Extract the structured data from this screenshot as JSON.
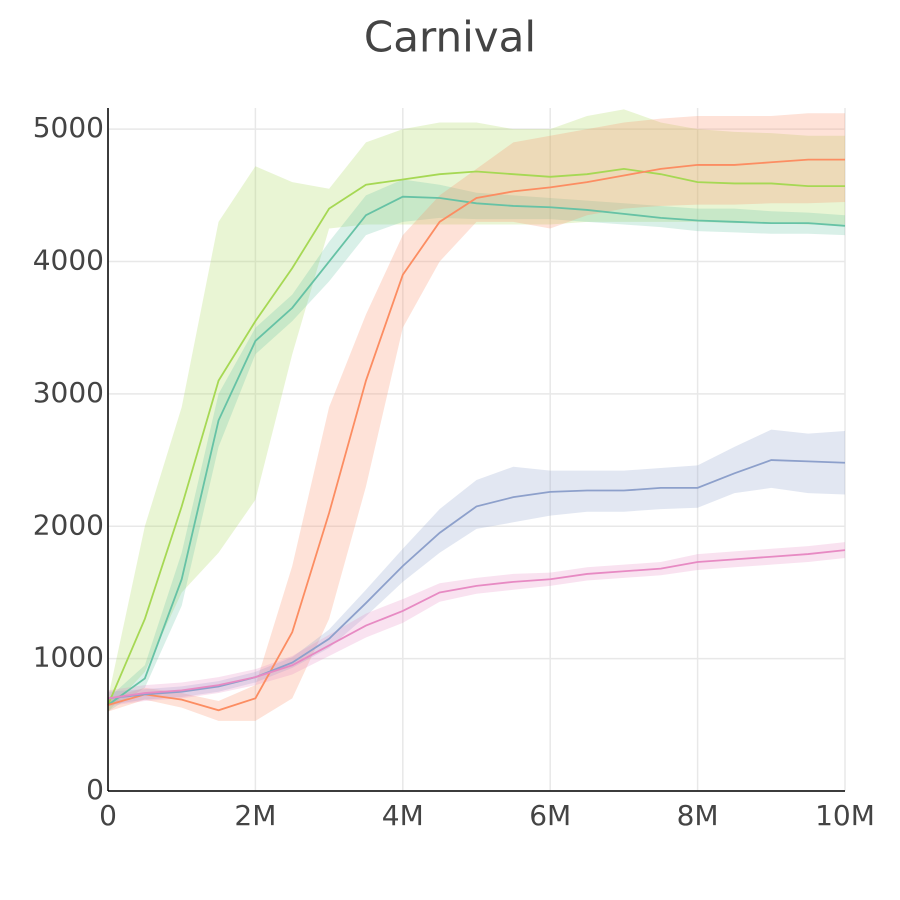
{
  "chart_data": {
    "type": "line",
    "title": "Carnival",
    "x": [
      0,
      500000,
      1000000,
      1500000,
      2000000,
      2500000,
      3000000,
      3500000,
      4000000,
      4500000,
      5000000,
      5500000,
      6000000,
      6500000,
      7000000,
      7500000,
      8000000,
      8500000,
      9000000,
      9500000,
      10000000
    ],
    "xlim": [
      0,
      10000000
    ],
    "xticks": [
      0,
      {
        "value": 2000000,
        "label": "2M"
      },
      {
        "value": 4000000,
        "label": "4M"
      },
      {
        "value": 6000000,
        "label": "6M"
      },
      {
        "value": 8000000,
        "label": "8M"
      },
      {
        "value": 10000000,
        "label": "10M"
      }
    ],
    "ylim": [
      0,
      5160
    ],
    "yticks": [
      0,
      1000,
      2000,
      3000,
      4000,
      5000
    ],
    "grid": true,
    "series": [
      {
        "color": "#a6d854",
        "values": [
          650,
          1300,
          2150,
          3100,
          3550,
          3950,
          4400,
          4580,
          4620,
          4660,
          4680,
          4660,
          4640,
          4660,
          4700,
          4660,
          4600,
          4590,
          4590,
          4570,
          4570
        ],
        "upper": [
          700,
          2000,
          2900,
          4300,
          4720,
          4600,
          4550,
          4900,
          5000,
          5050,
          5050,
          5000,
          5000,
          5100,
          5150,
          5050,
          5000,
          4980,
          4970,
          4950,
          4950
        ],
        "lower": [
          600,
          900,
          1500,
          1800,
          2200,
          3300,
          4250,
          4280,
          4280,
          4280,
          4280,
          4280,
          4280,
          4300,
          4300,
          4300,
          4300,
          4290,
          4290,
          4280,
          4280
        ]
      },
      {
        "color": "#66c2a5",
        "values": [
          650,
          850,
          1600,
          2800,
          3400,
          3650,
          4000,
          4350,
          4490,
          4480,
          4440,
          4420,
          4410,
          4390,
          4360,
          4330,
          4310,
          4300,
          4290,
          4290,
          4270
        ],
        "upper": [
          700,
          950,
          1800,
          3000,
          3500,
          3750,
          4150,
          4500,
          4620,
          4580,
          4520,
          4500,
          4480,
          4460,
          4440,
          4420,
          4400,
          4400,
          4380,
          4370,
          4350
        ],
        "lower": [
          600,
          780,
          1400,
          2600,
          3300,
          3550,
          3850,
          4200,
          4300,
          4330,
          4320,
          4320,
          4320,
          4300,
          4280,
          4260,
          4230,
          4220,
          4210,
          4210,
          4200
        ]
      },
      {
        "color": "#fc8d62",
        "values": [
          650,
          730,
          690,
          610,
          700,
          1200,
          2100,
          3100,
          3900,
          4300,
          4480,
          4530,
          4560,
          4600,
          4650,
          4700,
          4730,
          4730,
          4750,
          4770,
          4770
        ],
        "upper": [
          700,
          780,
          740,
          680,
          800,
          1700,
          2900,
          3600,
          4200,
          4500,
          4700,
          4900,
          4950,
          5000,
          5050,
          5080,
          5100,
          5100,
          5100,
          5120,
          5120
        ],
        "lower": [
          600,
          690,
          630,
          530,
          530,
          700,
          1300,
          2300,
          3500,
          4000,
          4300,
          4300,
          4250,
          4350,
          4400,
          4420,
          4430,
          4430,
          4440,
          4440,
          4450
        ]
      },
      {
        "color": "#8da0cb",
        "values": [
          700,
          730,
          750,
          790,
          860,
          970,
          1150,
          1420,
          1700,
          1950,
          2150,
          2220,
          2260,
          2270,
          2270,
          2290,
          2290,
          2400,
          2500,
          2490,
          2480
        ],
        "upper": [
          750,
          770,
          790,
          830,
          900,
          1010,
          1220,
          1520,
          1830,
          2130,
          2350,
          2450,
          2420,
          2420,
          2420,
          2440,
          2460,
          2600,
          2730,
          2700,
          2720
        ],
        "lower": [
          650,
          690,
          710,
          750,
          820,
          930,
          1080,
          1320,
          1580,
          1800,
          1980,
          2030,
          2080,
          2110,
          2110,
          2130,
          2140,
          2250,
          2290,
          2250,
          2240
        ]
      },
      {
        "color": "#e78ac3",
        "values": [
          700,
          740,
          760,
          800,
          860,
          950,
          1100,
          1250,
          1360,
          1500,
          1550,
          1580,
          1600,
          1640,
          1660,
          1680,
          1730,
          1750,
          1770,
          1790,
          1820
        ],
        "upper": [
          760,
          800,
          820,
          860,
          920,
          1020,
          1180,
          1340,
          1450,
          1570,
          1610,
          1640,
          1650,
          1690,
          1710,
          1730,
          1790,
          1810,
          1830,
          1850,
          1880
        ],
        "lower": [
          640,
          680,
          700,
          740,
          800,
          880,
          1020,
          1160,
          1270,
          1430,
          1490,
          1520,
          1550,
          1590,
          1610,
          1630,
          1670,
          1690,
          1710,
          1730,
          1760
        ]
      }
    ]
  }
}
